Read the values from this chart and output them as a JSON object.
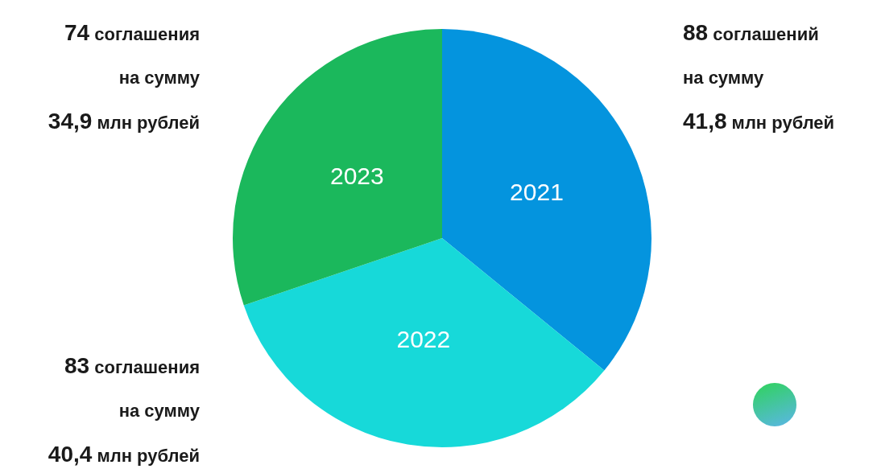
{
  "chart_data": {
    "type": "pie",
    "categories": [
      "2021",
      "2022",
      "2023"
    ],
    "values": [
      35.9,
      33.9,
      30.2
    ],
    "colors": [
      "#0494de",
      "#17d9d9",
      "#1bb85c"
    ],
    "annotations": [
      "88 соглашений\nна сумму\n41,8 млн рублей",
      "83 соглашения\nна сумму\n40,4 млн рублей",
      "74 соглашения\nна сумму\n34,9 млн рублей"
    ],
    "legend": false
  }
}
